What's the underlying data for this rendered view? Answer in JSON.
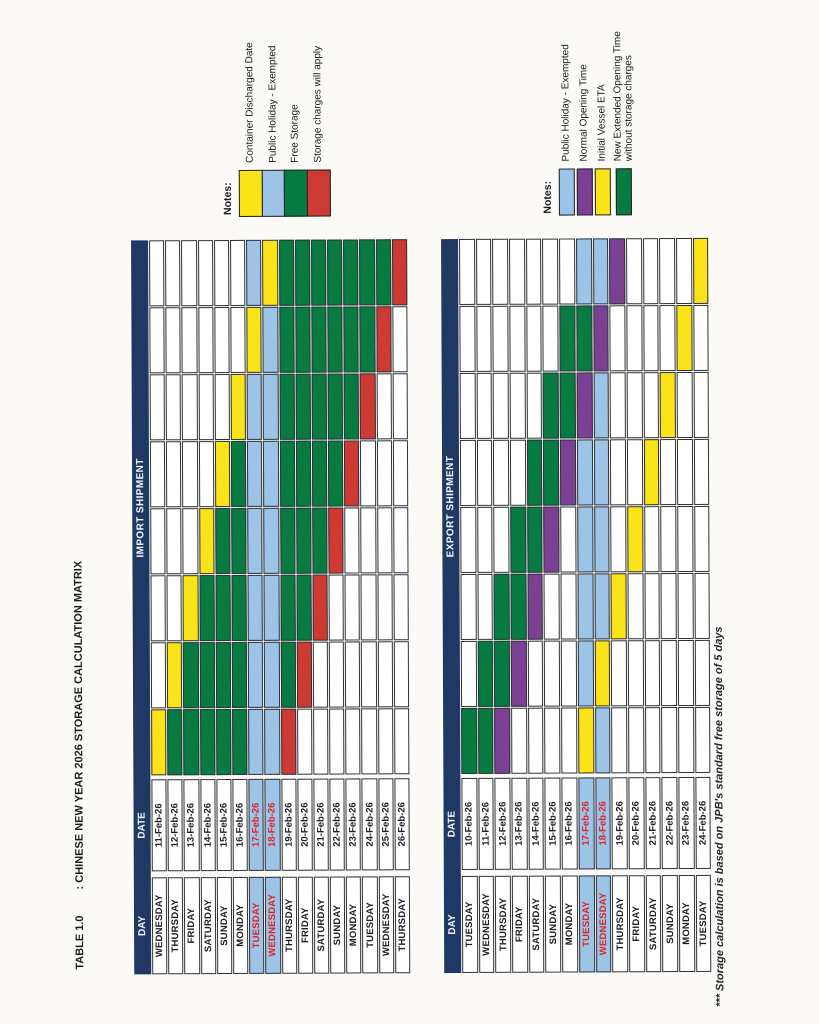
{
  "title": {
    "part1": "TABLE 1.0",
    "part2": ": CHINESE NEW YEAR 2026 STORAGE CALCULATION MATRIX"
  },
  "footnote": "*** Storage calculation is based on JPB's standard free storage of 5 days",
  "colors": {
    "navy": "#1f3864",
    "holiday_bg": "#9dc3e6",
    "holiday_text": "#e02226",
    "cell_letters": {
      "W": "#ffffff",
      "Y": "#fbe319",
      "B": "#9dc3e6",
      "G": "#077b41",
      "R": "#cd3a34",
      "P": "#7a4094"
    }
  },
  "import_table": {
    "headers": {
      "day": "DAY",
      "date": "DATE",
      "shipment": "IMPORT SHIPMENT"
    },
    "rows": [
      {
        "day": "WEDNESDAY",
        "date": "11-Feb-26",
        "holiday": false,
        "cells": "YWWWWWWW"
      },
      {
        "day": "THURSDAY",
        "date": "12-Feb-26",
        "holiday": false,
        "cells": "GYWWWWWW"
      },
      {
        "day": "FRIDAY",
        "date": "13-Feb-26",
        "holiday": false,
        "cells": "GGYWWWWW"
      },
      {
        "day": "SATURDAY",
        "date": "14-Feb-26",
        "holiday": false,
        "cells": "GGGYWWWW"
      },
      {
        "day": "SUNDAY",
        "date": "15-Feb-26",
        "holiday": false,
        "cells": "GGGGYWWW"
      },
      {
        "day": "MONDAY",
        "date": "16-Feb-26",
        "holiday": false,
        "cells": "GGGGGYWW"
      },
      {
        "day": "TUESDAY",
        "date": "17-Feb-26",
        "holiday": true,
        "cells": "BBBBBBYB"
      },
      {
        "day": "WEDNESDAY",
        "date": "18-Feb-26",
        "holiday": true,
        "cells": "BBBBBBBY"
      },
      {
        "day": "THURSDAY",
        "date": "19-Feb-26",
        "holiday": false,
        "cells": "RGGGGGGG"
      },
      {
        "day": "FRIDAY",
        "date": "20-Feb-26",
        "holiday": false,
        "cells": "WRGGGGGG"
      },
      {
        "day": "SATURDAY",
        "date": "21-Feb-26",
        "holiday": false,
        "cells": "WWRGGGGG"
      },
      {
        "day": "SUNDAY",
        "date": "22-Feb-26",
        "holiday": false,
        "cells": "WWWRGGGG"
      },
      {
        "day": "MONDAY",
        "date": "23-Feb-26",
        "holiday": false,
        "cells": "WWWWRGGG"
      },
      {
        "day": "TUESDAY",
        "date": "24-Feb-26",
        "holiday": false,
        "cells": "WWWWWRGG"
      },
      {
        "day": "WEDNESDAY",
        "date": "25-Feb-26",
        "holiday": false,
        "cells": "WWWWWWRG"
      },
      {
        "day": "THURSDAY",
        "date": "26-Feb-26",
        "holiday": false,
        "cells": "WWWWWWWR"
      }
    ]
  },
  "export_table": {
    "headers": {
      "day": "DAY",
      "date": "DATE",
      "shipment": "EXPORT SHIPMENT"
    },
    "rows": [
      {
        "day": "TUESDAY",
        "date": "10-Feb-26",
        "holiday": false,
        "cells": "GWWWWWWW"
      },
      {
        "day": "WEDNESDAY",
        "date": "11-Feb-26",
        "holiday": false,
        "cells": "GGWWWWWW"
      },
      {
        "day": "THURSDAY",
        "date": "12-Feb-26",
        "holiday": false,
        "cells": "PGGWWWWW"
      },
      {
        "day": "FRIDAY",
        "date": "13-Feb-26",
        "holiday": false,
        "cells": "WPGGWWWW"
      },
      {
        "day": "SATURDAY",
        "date": "14-Feb-26",
        "holiday": false,
        "cells": "WWPGGWWW"
      },
      {
        "day": "SUNDAY",
        "date": "15-Feb-26",
        "holiday": false,
        "cells": "WWWPGGWW"
      },
      {
        "day": "MONDAY",
        "date": "16-Feb-26",
        "holiday": false,
        "cells": "WWWWPGGW"
      },
      {
        "day": "TUESDAY",
        "date": "17-Feb-26",
        "holiday": true,
        "cells": "YBBBBPGB"
      },
      {
        "day": "WEDNESDAY",
        "date": "18-Feb-26",
        "holiday": true,
        "cells": "BYBBBBPB"
      },
      {
        "day": "THURSDAY",
        "date": "19-Feb-26",
        "holiday": false,
        "cells": "WWYWWWWP"
      },
      {
        "day": "FRIDAY",
        "date": "20-Feb-26",
        "holiday": false,
        "cells": "WWWYWWWW"
      },
      {
        "day": "SATURDAY",
        "date": "21-Feb-26",
        "holiday": false,
        "cells": "WWWWYWWW"
      },
      {
        "day": "SUNDAY",
        "date": "22-Feb-26",
        "holiday": false,
        "cells": "WWWWWYWW"
      },
      {
        "day": "MONDAY",
        "date": "23-Feb-26",
        "holiday": false,
        "cells": "WWWWWWYW"
      },
      {
        "day": "TUESDAY",
        "date": "24-Feb-26",
        "holiday": false,
        "cells": "WWWWWWWY"
      }
    ]
  },
  "import_legend": {
    "notes_label": "Notes:",
    "items": [
      {
        "key": "Y",
        "label": "Container Discharged Date"
      },
      {
        "key": "B",
        "label": "Public Holiday - Exempted"
      },
      {
        "key": "G",
        "label": "Free Storage"
      },
      {
        "key": "R",
        "label": "Storage charges will apply"
      }
    ]
  },
  "export_legend": {
    "notes_label": "Notes:",
    "items": [
      {
        "key": "B",
        "label": "Public Holiday - Exempted"
      },
      {
        "key": "P",
        "label": "Normal Opening Time"
      },
      {
        "key": "Y",
        "label": "Initial Vessel ETA"
      },
      {
        "key": "G",
        "label": "New Extended Opening Time without storage charges",
        "wrap": true
      }
    ]
  }
}
